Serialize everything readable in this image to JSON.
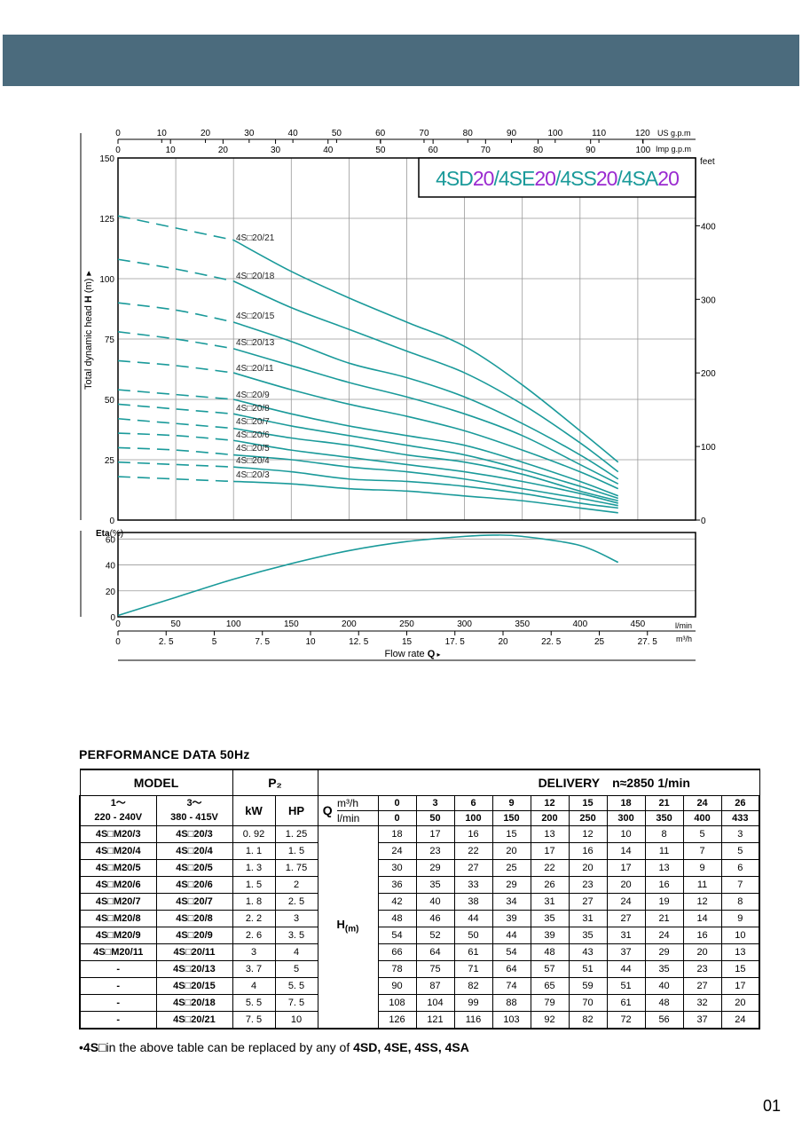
{
  "chart_data": [
    {
      "type": "line",
      "title": "4SD20/4SE20/4SS20/4SA20",
      "title_parts": [
        {
          "text": "4SD",
          "color": "#1a9a9a"
        },
        {
          "text": "20",
          "color": "#9a2ad0"
        },
        {
          "text": "/4SE",
          "color": "#1a9a9a"
        },
        {
          "text": "20",
          "color": "#9a2ad0"
        },
        {
          "text": "/4SS",
          "color": "#1a9a9a"
        },
        {
          "text": "20",
          "color": "#9a2ad0"
        },
        {
          "text": "/4SA",
          "color": "#1a9a9a"
        },
        {
          "text": "20",
          "color": "#9a2ad0"
        }
      ],
      "ylabel": "Total dynamic head H (m)",
      "ylim": [
        0,
        150
      ],
      "y_ticks": [
        0,
        25,
        50,
        75,
        100,
        125,
        150
      ],
      "y_ticks_labels": [
        "0",
        "25",
        "50",
        "75",
        "100",
        "125",
        "150"
      ],
      "right_axis_label": "feet",
      "right_axis_ticks": [
        0,
        100,
        200,
        300,
        400
      ],
      "right_axis_ticks_labels": [
        "0",
        "100",
        "200",
        "300",
        "400"
      ],
      "top_axis_us": {
        "label": "US g.p.m",
        "ticks": [
          0,
          10,
          20,
          30,
          40,
          50,
          60,
          70,
          80,
          90,
          100,
          110,
          120
        ],
        "ticks_labels": [
          "0",
          "10",
          "20",
          "30",
          "40",
          "50",
          "60",
          "70",
          "80",
          "90",
          "100",
          "110",
          "120"
        ]
      },
      "top_axis_imp": {
        "label": "Imp g.p.m",
        "ticks": [
          0,
          10,
          20,
          30,
          40,
          50,
          60,
          70,
          80,
          90,
          100
        ],
        "ticks_labels": [
          "0",
          "10",
          "20",
          "30",
          "40",
          "50",
          "60",
          "70",
          "80",
          "90",
          "100"
        ]
      },
      "xlim_lmin": [
        0,
        500
      ],
      "line_color": "#1a9a9a",
      "dashed_until_lmin": 100,
      "x": [
        0,
        50,
        100,
        150,
        200,
        250,
        300,
        350,
        400,
        433
      ],
      "series": [
        {
          "name": "4S□20/21",
          "values": [
            126,
            121,
            116,
            103,
            92,
            82,
            72,
            56,
            37,
            24
          ]
        },
        {
          "name": "4S□20/18",
          "values": [
            108,
            104,
            99,
            88,
            79,
            70,
            61,
            48,
            32,
            20
          ]
        },
        {
          "name": "4S□20/15",
          "values": [
            90,
            87,
            82,
            74,
            65,
            59,
            51,
            40,
            27,
            17
          ]
        },
        {
          "name": "4S□20/13",
          "values": [
            78,
            75,
            71,
            64,
            57,
            51,
            44,
            35,
            23,
            15
          ]
        },
        {
          "name": "4S□20/11",
          "values": [
            66,
            64,
            61,
            54,
            48,
            43,
            37,
            29,
            20,
            13
          ]
        },
        {
          "name": "4S□20/9",
          "values": [
            54,
            52,
            50,
            44,
            39,
            35,
            31,
            24,
            16,
            10
          ]
        },
        {
          "name": "4S□20/8",
          "values": [
            48,
            46,
            44,
            39,
            35,
            31,
            27,
            21,
            14,
            9
          ]
        },
        {
          "name": "4S□20/7",
          "values": [
            42,
            40,
            38,
            34,
            31,
            27,
            24,
            19,
            12,
            8
          ]
        },
        {
          "name": "4S□20/6",
          "values": [
            36,
            35,
            33,
            29,
            26,
            23,
            20,
            16,
            11,
            7
          ]
        },
        {
          "name": "4S□20/5",
          "values": [
            30,
            29,
            27,
            25,
            22,
            20,
            17,
            13,
            9,
            6
          ]
        },
        {
          "name": "4S□20/4",
          "values": [
            24,
            23,
            22,
            20,
            17,
            16,
            14,
            11,
            7,
            5
          ]
        },
        {
          "name": "4S□20/3",
          "values": [
            18,
            17,
            16,
            15,
            13,
            12,
            10,
            8,
            5,
            3
          ]
        }
      ]
    },
    {
      "type": "line",
      "ylabel": "Eta(%)",
      "ylabel_bold": "Eta",
      "ylabel_rest": "(%)",
      "ylim": [
        0,
        65
      ],
      "y_ticks": [
        0,
        20,
        40,
        60
      ],
      "y_ticks_labels": [
        "0",
        "20",
        "40",
        "60"
      ],
      "x_lmin_ticks": [
        0,
        50,
        100,
        150,
        200,
        250,
        300,
        350,
        400,
        450
      ],
      "x_lmin_ticks_labels": [
        "0",
        "50",
        "100",
        "150",
        "200",
        "250",
        "300",
        "350",
        "400",
        "450"
      ],
      "x_lmin_label": "l/min",
      "x_m3h_ticks": [
        0,
        2.5,
        5,
        7.5,
        10,
        12.5,
        15,
        17.5,
        20,
        22.5,
        25,
        27.5
      ],
      "x_m3h_ticks_labels": [
        "0",
        "2. 5",
        "5",
        "7. 5",
        "10",
        "12. 5",
        "15",
        "17. 5",
        "20",
        "22. 5",
        "25",
        "27. 5"
      ],
      "x_m3h_label": "m³/h",
      "xlabel": "Flow  rate",
      "xlabel_symbol": "Q",
      "xlabel_arrow": "▸",
      "x": [
        0,
        50,
        100,
        150,
        200,
        250,
        300,
        325,
        350,
        400,
        433
      ],
      "values": [
        1,
        15,
        29,
        41,
        51,
        58,
        62,
        63,
        62,
        55,
        42
      ]
    }
  ],
  "performance": {
    "title": "PERFORMANCE  DATA    50Hz",
    "header": {
      "model": "MODEL",
      "p2": "P₂",
      "delivery": "DELIVERY",
      "speed": "n≈2850 1/min",
      "phase1": "1～",
      "phase1_voltage": "220 - 240V",
      "phase3": "3～",
      "phase3_voltage": "380 - 415V",
      "kw": "kW",
      "hp": "HP",
      "q": "Q",
      "unit_m3h": "m³/h",
      "unit_lmin": "l/min",
      "h": "H",
      "h_unit": "(m)"
    },
    "flow_m3h": [
      "0",
      "3",
      "6",
      "9",
      "12",
      "15",
      "18",
      "21",
      "24",
      "26"
    ],
    "flow_lmin": [
      "0",
      "50",
      "100",
      "150",
      "200",
      "250",
      "300",
      "350",
      "400",
      "433"
    ],
    "rows": [
      {
        "m1": "4S□M20/3",
        "m3": "4S□20/3",
        "kw": "0. 92",
        "hp": "1. 25",
        "h": [
          "18",
          "17",
          "16",
          "15",
          "13",
          "12",
          "10",
          "8",
          "5",
          "3"
        ]
      },
      {
        "m1": "4S□M20/4",
        "m3": "4S□20/4",
        "kw": "1. 1",
        "hp": "1. 5",
        "h": [
          "24",
          "23",
          "22",
          "20",
          "17",
          "16",
          "14",
          "11",
          "7",
          "5"
        ]
      },
      {
        "m1": "4S□M20/5",
        "m3": "4S□20/5",
        "kw": "1. 3",
        "hp": "1. 75",
        "h": [
          "30",
          "29",
          "27",
          "25",
          "22",
          "20",
          "17",
          "13",
          "9",
          "6"
        ]
      },
      {
        "m1": "4S□M20/6",
        "m3": "4S□20/6",
        "kw": "1. 5",
        "hp": "2",
        "h": [
          "36",
          "35",
          "33",
          "29",
          "26",
          "23",
          "20",
          "16",
          "11",
          "7"
        ]
      },
      {
        "m1": "4S□M20/7",
        "m3": "4S□20/7",
        "kw": "1. 8",
        "hp": "2. 5",
        "h": [
          "42",
          "40",
          "38",
          "34",
          "31",
          "27",
          "24",
          "19",
          "12",
          "8"
        ]
      },
      {
        "m1": "4S□M20/8",
        "m3": "4S□20/8",
        "kw": "2. 2",
        "hp": "3",
        "h": [
          "48",
          "46",
          "44",
          "39",
          "35",
          "31",
          "27",
          "21",
          "14",
          "9"
        ]
      },
      {
        "m1": "4S□M20/9",
        "m3": "4S□20/9",
        "kw": "2. 6",
        "hp": "3. 5",
        "h": [
          "54",
          "52",
          "50",
          "44",
          "39",
          "35",
          "31",
          "24",
          "16",
          "10"
        ]
      },
      {
        "m1": "4S□M20/11",
        "m3": "4S□20/11",
        "kw": "3",
        "hp": "4",
        "h": [
          "66",
          "64",
          "61",
          "54",
          "48",
          "43",
          "37",
          "29",
          "20",
          "13"
        ]
      },
      {
        "m1": "-",
        "m3": "4S□20/13",
        "kw": "3. 7",
        "hp": "5",
        "h": [
          "78",
          "75",
          "71",
          "64",
          "57",
          "51",
          "44",
          "35",
          "23",
          "15"
        ]
      },
      {
        "m1": "-",
        "m3": "4S□20/15",
        "kw": "4",
        "hp": "5. 5",
        "h": [
          "90",
          "87",
          "82",
          "74",
          "65",
          "59",
          "51",
          "40",
          "27",
          "17"
        ]
      },
      {
        "m1": "-",
        "m3": "4S□20/18",
        "kw": "5. 5",
        "hp": "7. 5",
        "h": [
          "108",
          "104",
          "99",
          "88",
          "79",
          "70",
          "61",
          "48",
          "32",
          "20"
        ]
      },
      {
        "m1": "-",
        "m3": "4S□20/21",
        "kw": "7. 5",
        "hp": "10",
        "h": [
          "126",
          "121",
          "116",
          "103",
          "92",
          "82",
          "72",
          "56",
          "37",
          "24"
        ]
      }
    ]
  },
  "footnote": {
    "bullet": "•",
    "prefix": "4S",
    "mid": "□in the above table can be replaced by any of ",
    "list": "4SD, 4SE, 4SS, 4SA"
  },
  "page_number": "01"
}
